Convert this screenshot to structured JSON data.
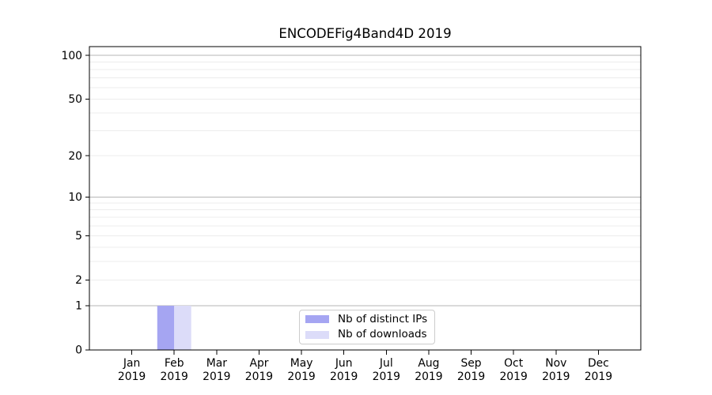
{
  "chart_data": {
    "type": "bar",
    "title": "ENCODEFig4Band4D 2019",
    "x_axis": {
      "months": [
        "Jan",
        "Feb",
        "Mar",
        "Apr",
        "May",
        "Jun",
        "Jul",
        "Aug",
        "Sep",
        "Oct",
        "Nov",
        "Dec"
      ],
      "year": "2019"
    },
    "y_axis": {
      "scale": "log1p",
      "tick_labels": [
        0,
        1,
        2,
        5,
        10,
        20,
        50,
        100
      ],
      "major_gridlines": [
        1,
        10,
        100
      ],
      "minor_gridlines": [
        2,
        3,
        4,
        5,
        6,
        7,
        8,
        9,
        20,
        30,
        40,
        50,
        60,
        70,
        80,
        90
      ],
      "range": [
        0,
        115
      ]
    },
    "series": [
      {
        "name": "Nb of distinct IPs",
        "color": "#a5a5f2",
        "values": [
          0,
          1,
          0,
          0,
          0,
          0,
          0,
          0,
          0,
          0,
          0,
          0
        ]
      },
      {
        "name": "Nb of downloads",
        "color": "#dcdcf9",
        "values": [
          0,
          1,
          0,
          0,
          0,
          0,
          0,
          0,
          0,
          0,
          0,
          0
        ]
      }
    ],
    "legend": {
      "position": "lower center"
    },
    "grid": "on"
  },
  "colors": {
    "background": "#ffffff",
    "spine": "#000000",
    "major_grid": "#b6b6b6",
    "minor_grid": "#ececec",
    "tick_text": "#000000",
    "legend_border": "#cccccc"
  }
}
